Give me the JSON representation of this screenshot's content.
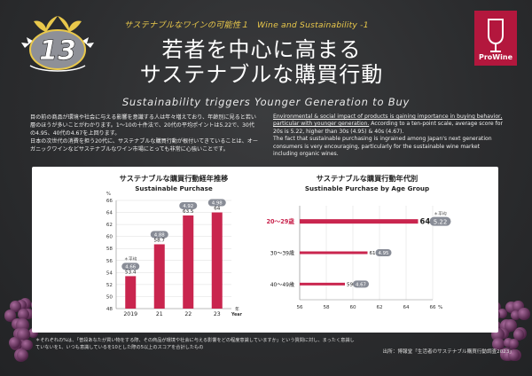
{
  "header": {
    "badge_number": "13",
    "kicker": "サステナブルなワインの可能性１　Wine and Sustainability -1",
    "title_line1": "若者を中心に高まる",
    "title_line2": "サステナブルな購買行動",
    "logo_text": "ProWine",
    "subtitle": "Sustainability triggers Younger Generation to Buy"
  },
  "intro": {
    "jp_p1": "目の前の商品が環境や社会に与える影響を意識する人は年々増えており、年齢別に見ると若い層のほうが多いことがわかります。1～10の十件法で、20代の平均ポイントは5.22で、30代の4.95、40代の4.67を上回ります。",
    "jp_p2": "日本の次世代の消費を担う20代に、サステナブルな購買行動が根付いてきていることは、オーガニックワインなどサステナブルなワイン市場にとっても非常に心強いことです。",
    "en_p1": "Environmental & social impact of products is gaining importance in buying behavior, particular with younger generation.",
    "en_p1_rest": " According to a ten-point scale, average score for 20s is 5.22, higher than 30s (4.95) & 40s (4.67).",
    "en_p2": "The fact that sustainable purchasing is ingrained among Japan's next generation consumers is very encouraging, particularly for the sustainable wine market including organic wines."
  },
  "footer": {
    "footnote": "＊それぞれの%は、「普段あなたが買い物をする際、その商品が環境や社会に与える影響をどの程度意識していますか」という質問に対し、まったく意識していないを1、いつも意識しているを10とした際の5以上のスコアを合計したもの",
    "source": "出所：博報堂「生活者のサステナブル購買行動調査2023」"
  },
  "colors": {
    "bar": "#c9254e",
    "badge_fill": "#8e9097",
    "avg_badge": "#888c96",
    "accent_gold": "#e9c84b"
  },
  "chart_data": [
    {
      "type": "bar",
      "title": "サステナブルな購買行動経年推移",
      "subtitle": "Sustainable Purchase",
      "ylabel": "%",
      "xlabel": "年\nYear",
      "categories": [
        "2019",
        "21",
        "22",
        "23"
      ],
      "values": [
        53.4,
        58.7,
        63.5,
        64
      ],
      "averages": [
        4.66,
        4.88,
        4.92,
        4.98
      ],
      "avg_label": "＊平均",
      "yticks": [
        48,
        50,
        52,
        54,
        56,
        58,
        60,
        62,
        64,
        66
      ],
      "ylim": [
        48,
        66
      ],
      "orientation": "vertical"
    },
    {
      "type": "bar",
      "title": "サステナブルな購買行動年代別",
      "subtitle": "Sustinable Purchase by Age Group",
      "xlabel": "%",
      "categories": [
        "20～29歳",
        "30～39歳",
        "40～49歳"
      ],
      "values": [
        64.9,
        61.1,
        59.4
      ],
      "averages": [
        5.22,
        4.95,
        4.67
      ],
      "avg_label": "＊平均",
      "xticks": [
        56,
        58,
        60,
        62,
        64,
        66
      ],
      "xlim": [
        56,
        66
      ],
      "orientation": "horizontal"
    }
  ]
}
